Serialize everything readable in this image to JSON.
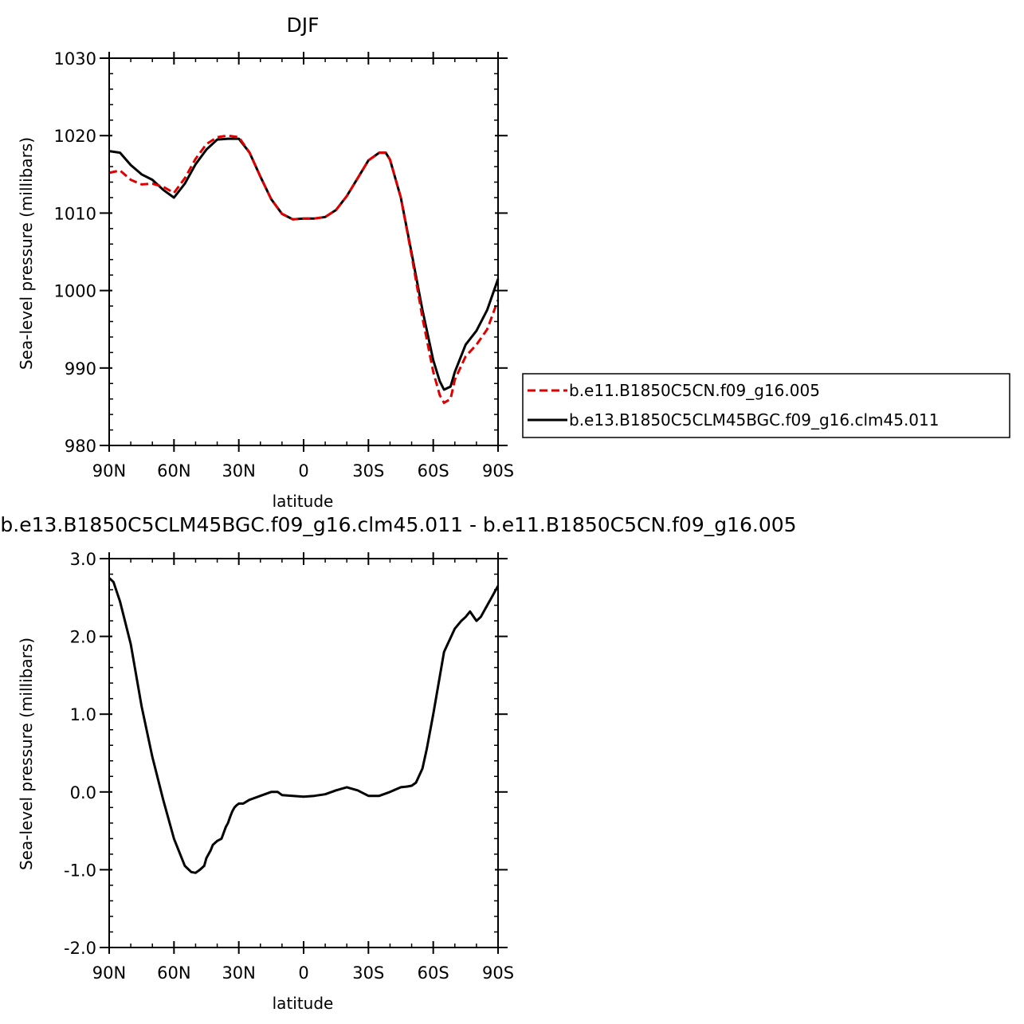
{
  "colors": {
    "control": "#e00000",
    "experiment": "#000000",
    "frame": "#000000"
  },
  "top_title": "DJF",
  "bottom_title": "b.e13.B1850C5CLM45BGC.f09_g16.clm45.011 - b.e11.B1850C5CN.f09_g16.005",
  "chart_data": [
    {
      "type": "line",
      "title": "DJF",
      "xlabel": "latitude",
      "ylabel": "Sea-level pressure (millibars)",
      "xlim": [
        90,
        -90
      ],
      "ylim": [
        980,
        1030
      ],
      "x_ticks": [
        90,
        60,
        30,
        0,
        -30,
        -60,
        -90
      ],
      "x_tick_labels": [
        "90N",
        "60N",
        "30N",
        "0",
        "30S",
        "60S",
        "90S"
      ],
      "y_ticks": [
        980,
        990,
        1000,
        1010,
        1020,
        1030
      ],
      "y_tick_labels": [
        "980",
        "990",
        "1000",
        "1010",
        "1020",
        "1030"
      ],
      "legend": "right",
      "series": [
        {
          "name": "b.e11.B1850C5CN.f09_g16.005",
          "style": "dashed",
          "color": "#e00000",
          "x": [
            90,
            85,
            80,
            75,
            70,
            65,
            60,
            55,
            50,
            45,
            40,
            35,
            30,
            25,
            20,
            15,
            10,
            5,
            0,
            -5,
            -10,
            -15,
            -20,
            -25,
            -30,
            -35,
            -38,
            -40,
            -45,
            -50,
            -55,
            -60,
            -63,
            -65,
            -68,
            -70,
            -75,
            -80,
            -85,
            -90
          ],
          "values": [
            1015.2,
            1015.5,
            1014.3,
            1013.7,
            1013.8,
            1013.4,
            1012.6,
            1014.5,
            1017.0,
            1018.9,
            1019.8,
            1020.0,
            1019.8,
            1017.8,
            1014.7,
            1011.8,
            1009.9,
            1009.2,
            1009.3,
            1009.3,
            1009.5,
            1010.4,
            1012.2,
            1014.5,
            1016.8,
            1017.8,
            1017.8,
            1016.9,
            1012.0,
            1004.5,
            996.5,
            989.5,
            986.5,
            985.5,
            986.0,
            988.5,
            991.5,
            993.0,
            995.0,
            998.8
          ]
        },
        {
          "name": "b.e13.B1850C5CLM45BGC.f09_g16.clm45.011",
          "style": "solid",
          "color": "#000000",
          "x": [
            90,
            85,
            80,
            75,
            70,
            65,
            60,
            55,
            50,
            45,
            40,
            35,
            30,
            25,
            20,
            15,
            10,
            5,
            0,
            -5,
            -10,
            -15,
            -20,
            -25,
            -30,
            -35,
            -38,
            -40,
            -45,
            -50,
            -55,
            -60,
            -63,
            -65,
            -68,
            -70,
            -75,
            -80,
            -85,
            -90
          ],
          "values": [
            1018.0,
            1017.8,
            1016.2,
            1015.0,
            1014.3,
            1013.0,
            1012.0,
            1013.8,
            1016.3,
            1018.2,
            1019.5,
            1019.6,
            1019.6,
            1017.8,
            1014.7,
            1011.8,
            1009.9,
            1009.2,
            1009.3,
            1009.3,
            1009.5,
            1010.4,
            1012.2,
            1014.5,
            1016.8,
            1017.8,
            1017.8,
            1016.9,
            1012.0,
            1004.8,
            997.5,
            991.0,
            988.3,
            987.2,
            987.6,
            989.5,
            993.0,
            994.8,
            997.5,
            1001.5
          ]
        }
      ]
    },
    {
      "type": "line",
      "title": "b.e13.B1850C5CLM45BGC.f09_g16.clm45.011 - b.e11.B1850C5CN.f09_g16.005",
      "xlabel": "latitude",
      "ylabel": "Sea-level pressure (millibars)",
      "xlim": [
        90,
        -90
      ],
      "ylim": [
        -2.0,
        3.0
      ],
      "x_ticks": [
        90,
        60,
        30,
        0,
        -30,
        -60,
        -90
      ],
      "x_tick_labels": [
        "90N",
        "60N",
        "30N",
        "0",
        "30S",
        "60S",
        "90S"
      ],
      "y_ticks": [
        -2.0,
        -1.0,
        0.0,
        1.0,
        2.0,
        3.0
      ],
      "y_tick_labels": [
        "-2.0",
        "-1.0",
        "0.0",
        "1.0",
        "2.0",
        "3.0"
      ],
      "series": [
        {
          "style": "solid",
          "color": "#000000",
          "x": [
            90,
            88,
            85,
            80,
            75,
            70,
            65,
            60,
            55,
            52,
            50,
            48,
            46,
            45,
            43,
            42,
            40,
            38,
            36,
            35,
            34,
            33,
            32,
            31,
            30,
            28,
            25,
            20,
            15,
            12,
            10,
            5,
            0,
            -5,
            -10,
            -15,
            -20,
            -25,
            -30,
            -35,
            -40,
            -45,
            -48,
            -50,
            -52,
            -55,
            -57,
            -60,
            -65,
            -70,
            -73,
            -75,
            -77,
            -80,
            -82,
            -85,
            -87,
            -90
          ],
          "values": [
            2.75,
            2.7,
            2.45,
            1.9,
            1.1,
            0.45,
            -0.1,
            -0.6,
            -0.95,
            -1.03,
            -1.04,
            -1.0,
            -0.95,
            -0.85,
            -0.75,
            -0.68,
            -0.63,
            -0.6,
            -0.45,
            -0.4,
            -0.32,
            -0.25,
            -0.2,
            -0.17,
            -0.15,
            -0.15,
            -0.1,
            -0.05,
            0.0,
            0.0,
            -0.04,
            -0.05,
            -0.06,
            -0.05,
            -0.03,
            0.02,
            0.06,
            0.02,
            -0.05,
            -0.05,
            0.0,
            0.06,
            0.07,
            0.08,
            0.12,
            0.3,
            0.55,
            1.0,
            1.8,
            2.1,
            2.2,
            2.25,
            2.32,
            2.2,
            2.25,
            2.4,
            2.5,
            2.65
          ]
        }
      ]
    }
  ]
}
